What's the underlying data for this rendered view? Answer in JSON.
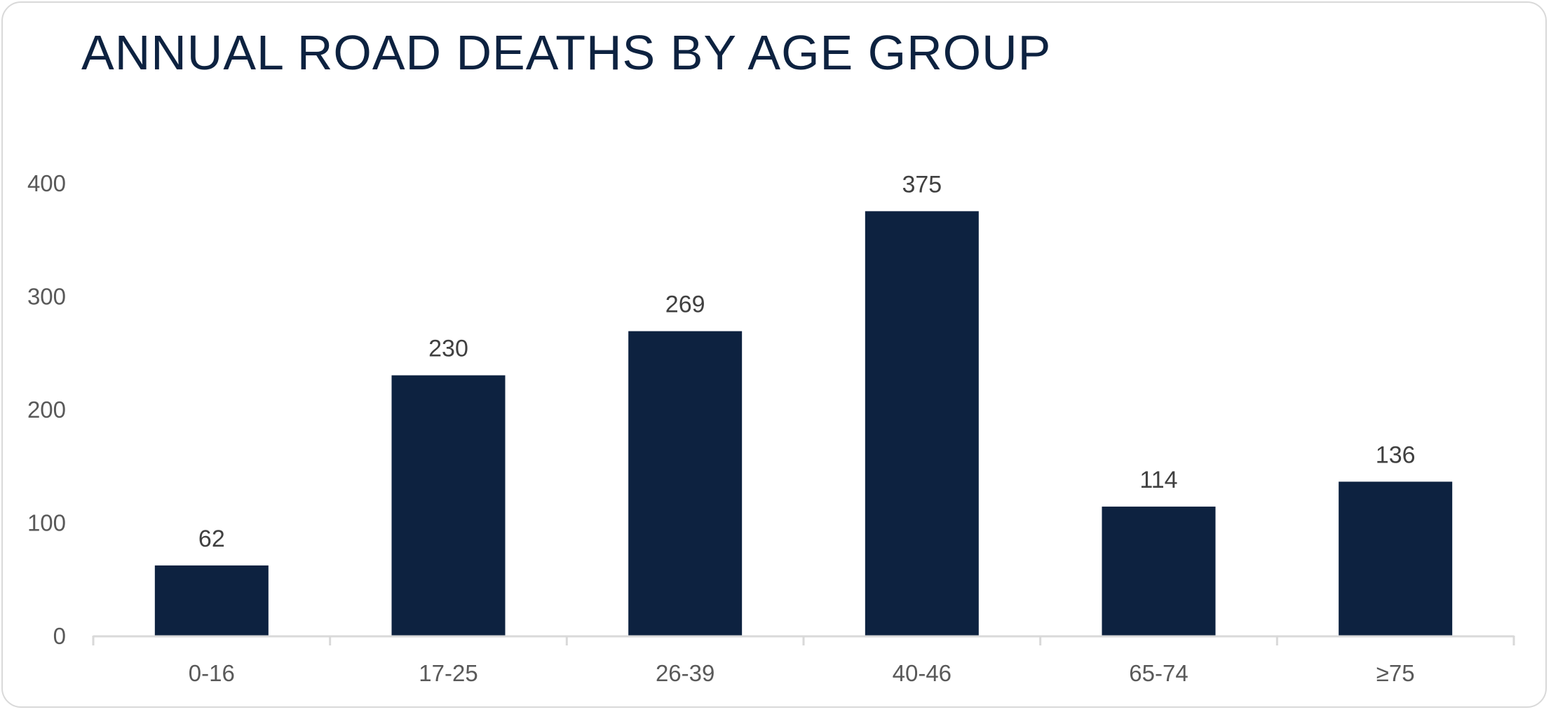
{
  "chart_data": {
    "type": "bar",
    "title": "ANNUAL ROAD DEATHS BY AGE GROUP",
    "xlabel": "",
    "ylabel": "",
    "categories": [
      "0-16",
      "17-25",
      "26-39",
      "40-46",
      "65-74",
      "≥75"
    ],
    "values": [
      62,
      230,
      269,
      375,
      114,
      136
    ],
    "ylim": [
      0,
      400
    ],
    "yticks": [
      0,
      100,
      200,
      300,
      400
    ],
    "grid": false,
    "legend": "none",
    "data_labels": true,
    "colors": {
      "bar": "#0d2240",
      "axis": "#d9d9d9",
      "title": "#0d2240",
      "tick_text": "#595959",
      "data_label_text": "#404040"
    }
  }
}
